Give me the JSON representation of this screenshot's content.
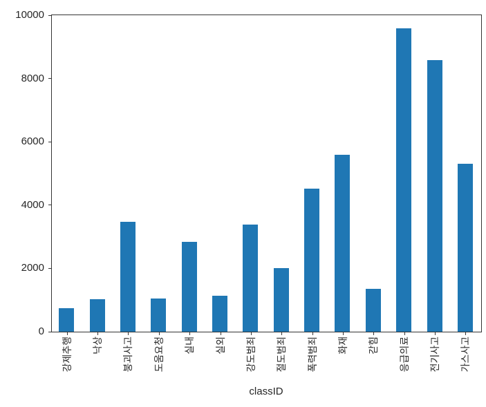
{
  "figure": {
    "background_color": "#ffffff",
    "bar_color": "#1f77b4",
    "axis_color": "#333333",
    "text_color": "#262626"
  },
  "chart_data": {
    "type": "bar",
    "title": "",
    "xlabel": "classID",
    "ylabel": "",
    "categories": [
      "강제추행",
      "낙상",
      "붕괴사고",
      "도움요청",
      "실내",
      "실외",
      "강도범죄",
      "절도범죄",
      "폭력범죄",
      "화재",
      "갇힘",
      "응급의료",
      "전기사고",
      "가스사고"
    ],
    "values": [
      750,
      1030,
      3480,
      1060,
      2850,
      1140,
      3380,
      2020,
      4530,
      5590,
      1360,
      9590,
      8590,
      5300
    ],
    "ylim": [
      0,
      10000
    ],
    "yticks": [
      0,
      2000,
      4000,
      6000,
      8000,
      10000
    ],
    "x_tick_rotation": 90,
    "grid": false,
    "legend": "none",
    "bar_width_fraction": 0.5
  }
}
